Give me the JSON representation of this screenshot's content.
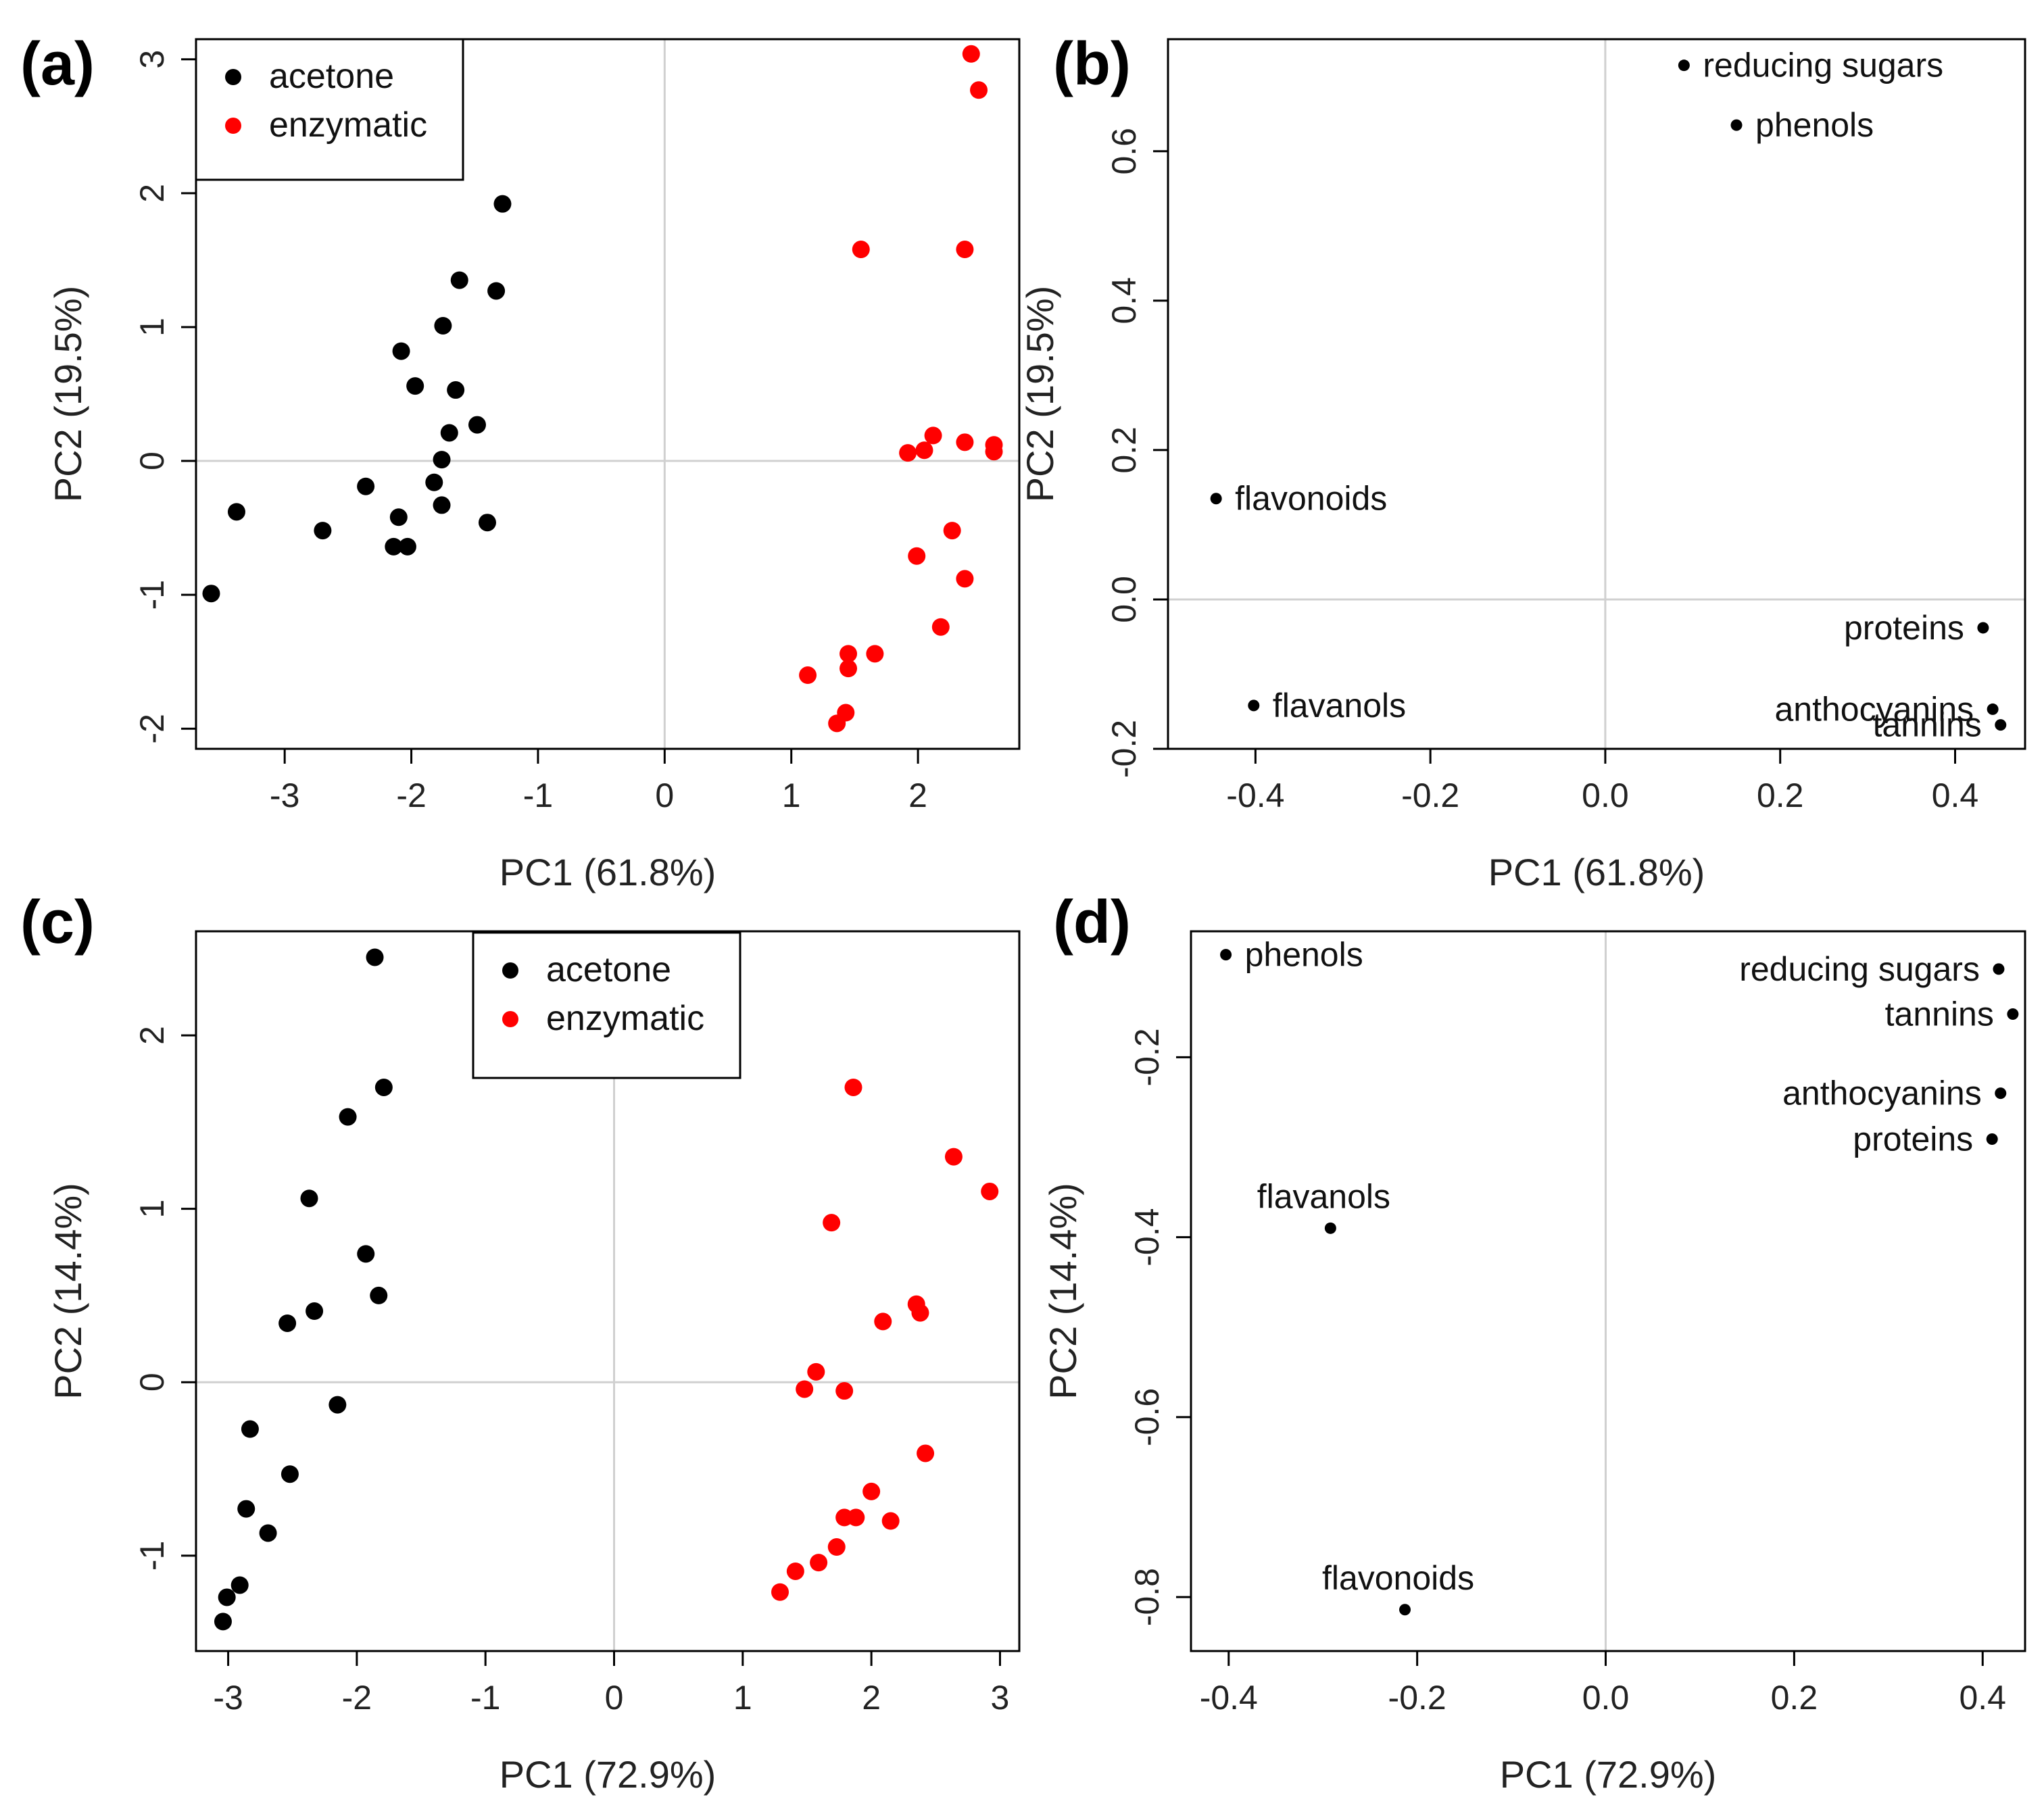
{
  "colors": {
    "acetone": "#000000",
    "enzymatic": "#ff0000",
    "loading": "#000000",
    "zero_line": "#d0d0d0"
  },
  "chart_data": [
    {
      "id": "a",
      "type": "scatter",
      "panel_label": "(a)",
      "xlabel": "PC1 (61.8%)",
      "ylabel": "PC2 (19.5%)",
      "xlim": [
        -3.7,
        2.8
      ],
      "ylim": [
        -2.15,
        3.15
      ],
      "xticks": [
        -3,
        -2,
        -1,
        0,
        1,
        2
      ],
      "yticks": [
        -2,
        -1,
        0,
        1,
        2,
        3
      ],
      "legend": {
        "position": "top-left",
        "entries": [
          "acetone",
          "enzymatic"
        ]
      },
      "series": [
        {
          "name": "acetone",
          "color": "#000000",
          "points": [
            [
              -1.28,
              1.92
            ],
            [
              -1.62,
              1.35
            ],
            [
              -1.33,
              1.27
            ],
            [
              -1.75,
              1.01
            ],
            [
              -2.08,
              0.82
            ],
            [
              -1.97,
              0.56
            ],
            [
              -1.65,
              0.53
            ],
            [
              -1.48,
              0.27
            ],
            [
              -1.7,
              0.21
            ],
            [
              -1.76,
              0.01
            ],
            [
              -1.82,
              -0.16
            ],
            [
              -2.36,
              -0.19
            ],
            [
              -1.76,
              -0.33
            ],
            [
              -1.4,
              -0.46
            ],
            [
              -3.38,
              -0.38
            ],
            [
              -2.7,
              -0.52
            ],
            [
              -2.1,
              -0.42
            ],
            [
              -2.14,
              -0.64
            ],
            [
              -2.03,
              -0.64
            ],
            [
              -3.58,
              -0.99
            ]
          ]
        },
        {
          "name": "enzymatic",
          "color": "#ff0000",
          "points": [
            [
              2.42,
              3.04
            ],
            [
              2.48,
              2.77
            ],
            [
              1.55,
              1.58
            ],
            [
              2.37,
              1.58
            ],
            [
              2.12,
              0.19
            ],
            [
              1.92,
              0.06
            ],
            [
              2.05,
              0.08
            ],
            [
              2.37,
              0.14
            ],
            [
              2.6,
              0.12
            ],
            [
              2.6,
              0.07
            ],
            [
              2.27,
              -0.52
            ],
            [
              1.99,
              -0.71
            ],
            [
              2.37,
              -0.88
            ],
            [
              2.18,
              -1.24
            ],
            [
              1.66,
              -1.44
            ],
            [
              1.45,
              -1.44
            ],
            [
              1.45,
              -1.55
            ],
            [
              1.13,
              -1.6
            ],
            [
              1.43,
              -1.88
            ],
            [
              1.36,
              -1.96
            ]
          ]
        }
      ]
    },
    {
      "id": "b",
      "type": "scatter",
      "panel_label": "(b)",
      "xlabel": "PC1 (61.8%)",
      "ylabel": "PC2 (19.5%)",
      "xlim": [
        -0.5,
        0.48
      ],
      "ylim": [
        -0.2,
        0.75
      ],
      "xticks": [
        -0.4,
        -0.2,
        0.0,
        0.2,
        0.4
      ],
      "xtick_labels": [
        "-0.4",
        "-0.2",
        "0.0",
        "0.2",
        "0.4"
      ],
      "yticks": [
        -0.2,
        0.0,
        0.2,
        0.4,
        0.6
      ],
      "ytick_labels": [
        "-0.2",
        "0.0",
        "0.2",
        "0.4",
        "0.6"
      ],
      "loadings": [
        {
          "label": "reducing sugars",
          "x": 0.09,
          "y": 0.715,
          "anchor": "right"
        },
        {
          "label": "phenols",
          "x": 0.15,
          "y": 0.635,
          "anchor": "right"
        },
        {
          "label": "flavonoids",
          "x": -0.445,
          "y": 0.135,
          "anchor": "right"
        },
        {
          "label": "proteins",
          "x": 0.432,
          "y": -0.038,
          "anchor": "left"
        },
        {
          "label": "anthocyanins",
          "x": 0.443,
          "y": -0.147,
          "anchor": "left"
        },
        {
          "label": "tannins",
          "x": 0.452,
          "y": -0.168,
          "anchor": "left"
        },
        {
          "label": "flavanols",
          "x": -0.402,
          "y": -0.142,
          "anchor": "right"
        }
      ]
    },
    {
      "id": "c",
      "type": "scatter",
      "panel_label": "(c)",
      "xlabel": "PC1 (72.9%)",
      "ylabel": "PC2 (14.4%)",
      "xlim": [
        -3.25,
        3.15
      ],
      "ylim": [
        -1.55,
        2.6
      ],
      "xticks": [
        -3,
        -2,
        -1,
        0,
        1,
        2,
        3
      ],
      "yticks": [
        -1,
        0,
        1,
        2
      ],
      "legend": {
        "position": "top-center",
        "entries": [
          "acetone",
          "enzymatic"
        ]
      },
      "series": [
        {
          "name": "acetone",
          "color": "#000000",
          "points": [
            [
              -1.86,
              2.45
            ],
            [
              -1.79,
              1.7
            ],
            [
              -2.07,
              1.53
            ],
            [
              -2.37,
              1.06
            ],
            [
              -1.93,
              0.74
            ],
            [
              -1.83,
              0.5
            ],
            [
              -2.33,
              0.41
            ],
            [
              -2.54,
              0.34
            ],
            [
              -2.15,
              -0.13
            ],
            [
              -2.83,
              -0.27
            ],
            [
              -2.52,
              -0.53
            ],
            [
              -2.86,
              -0.73
            ],
            [
              -2.69,
              -0.87
            ],
            [
              -2.91,
              -1.17
            ],
            [
              -3.01,
              -1.24
            ],
            [
              -3.04,
              -1.38
            ]
          ]
        },
        {
          "name": "enzymatic",
          "color": "#ff0000",
          "points": [
            [
              1.86,
              1.7
            ],
            [
              2.64,
              1.3
            ],
            [
              2.92,
              1.1
            ],
            [
              1.69,
              0.92
            ],
            [
              2.35,
              0.45
            ],
            [
              2.38,
              0.4
            ],
            [
              2.09,
              0.35
            ],
            [
              1.57,
              0.06
            ],
            [
              1.48,
              -0.04
            ],
            [
              1.79,
              -0.05
            ],
            [
              2.42,
              -0.41
            ],
            [
              2.0,
              -0.63
            ],
            [
              1.79,
              -0.78
            ],
            [
              1.88,
              -0.78
            ],
            [
              2.15,
              -0.8
            ],
            [
              1.73,
              -0.95
            ],
            [
              1.41,
              -1.09
            ],
            [
              1.59,
              -1.04
            ],
            [
              1.29,
              -1.21
            ]
          ]
        }
      ]
    },
    {
      "id": "d",
      "type": "scatter",
      "panel_label": "(d)",
      "xlabel": "PC1 (72.9%)",
      "ylabel": "PC2 (14.4%)",
      "xlim": [
        -0.44,
        0.445
      ],
      "ylim": [
        -0.86,
        -0.06
      ],
      "xticks": [
        -0.4,
        -0.2,
        0.0,
        0.2,
        0.4
      ],
      "xtick_labels": [
        "-0.4",
        "-0.2",
        "0.0",
        "0.2",
        "0.4"
      ],
      "yticks": [
        -0.8,
        -0.6,
        -0.4,
        -0.2
      ],
      "ytick_labels": [
        "-0.8",
        "-0.6",
        "-0.4",
        "-0.2"
      ],
      "loadings": [
        {
          "label": "phenols",
          "x": -0.403,
          "y": -0.086,
          "anchor": "right"
        },
        {
          "label": "reducing sugars",
          "x": 0.417,
          "y": -0.102,
          "anchor": "left"
        },
        {
          "label": "tannins",
          "x": 0.432,
          "y": -0.152,
          "anchor": "left"
        },
        {
          "label": "anthocyanins",
          "x": 0.419,
          "y": -0.24,
          "anchor": "left"
        },
        {
          "label": "proteins",
          "x": 0.41,
          "y": -0.291,
          "anchor": "left"
        },
        {
          "label": "flavanols",
          "x": -0.292,
          "y": -0.39,
          "anchor": "above"
        },
        {
          "label": "flavonoids",
          "x": -0.213,
          "y": -0.814,
          "anchor": "above"
        }
      ]
    }
  ]
}
